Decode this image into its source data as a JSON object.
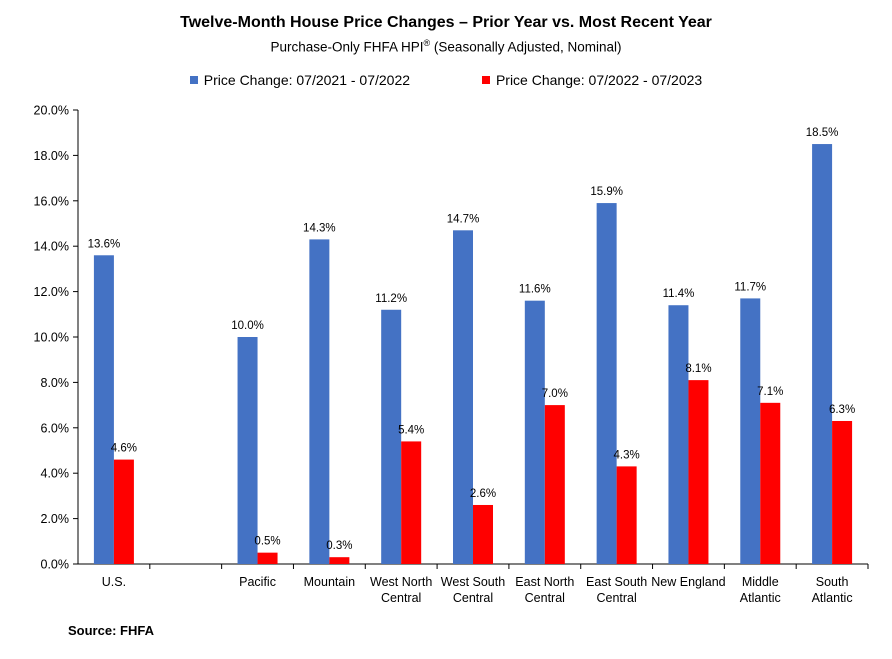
{
  "chart_data": {
    "type": "bar",
    "title": "Twelve-Month House Price Changes – Prior Year vs. Most Recent Year",
    "subtitle": "Purchase-Only FHFA HPI",
    "subtitle_mark": "®",
    "subtitle_suffix": " (Seasonally Adjusted, Nominal)",
    "categories": [
      [
        "U.S."
      ],
      [
        ""
      ],
      [
        "Pacific"
      ],
      [
        "Mountain"
      ],
      [
        "West North",
        "Central"
      ],
      [
        "West South",
        "Central"
      ],
      [
        "East North",
        "Central"
      ],
      [
        "East South",
        "Central"
      ],
      [
        "New England"
      ],
      [
        "Middle",
        "Atlantic"
      ],
      [
        "South",
        "Atlantic"
      ]
    ],
    "series": [
      {
        "name": "Price Change:  07/2021 - 07/2022",
        "color": "#4472C4",
        "values": [
          13.6,
          null,
          10.0,
          14.3,
          11.2,
          14.7,
          11.6,
          15.9,
          11.4,
          11.7,
          18.5
        ],
        "labels": [
          "13.6%",
          "",
          "10.0%",
          "14.3%",
          "11.2%",
          "14.7%",
          "11.6%",
          "15.9%",
          "11.4%",
          "11.7%",
          "18.5%"
        ]
      },
      {
        "name": "Price Change:  07/2022 - 07/2023",
        "color": "#FF0000",
        "values": [
          4.6,
          null,
          0.5,
          0.3,
          5.4,
          2.6,
          7.0,
          4.3,
          8.1,
          7.1,
          6.3
        ],
        "labels": [
          "4.6%",
          "",
          "0.5%",
          "0.3%",
          "5.4%",
          "2.6%",
          "7.0%",
          "4.3%",
          "8.1%",
          "7.1%",
          "6.3%"
        ]
      }
    ],
    "ylim": [
      0,
      20
    ],
    "yticks": [
      0,
      2,
      4,
      6,
      8,
      10,
      12,
      14,
      16,
      18,
      20
    ],
    "ytick_labels": [
      "0.0%",
      "2.0%",
      "4.0%",
      "6.0%",
      "8.0%",
      "10.0%",
      "12.0%",
      "14.0%",
      "16.0%",
      "18.0%",
      "20.0%"
    ],
    "grid": false,
    "legend": "top-center",
    "source": "Source: FHFA"
  }
}
